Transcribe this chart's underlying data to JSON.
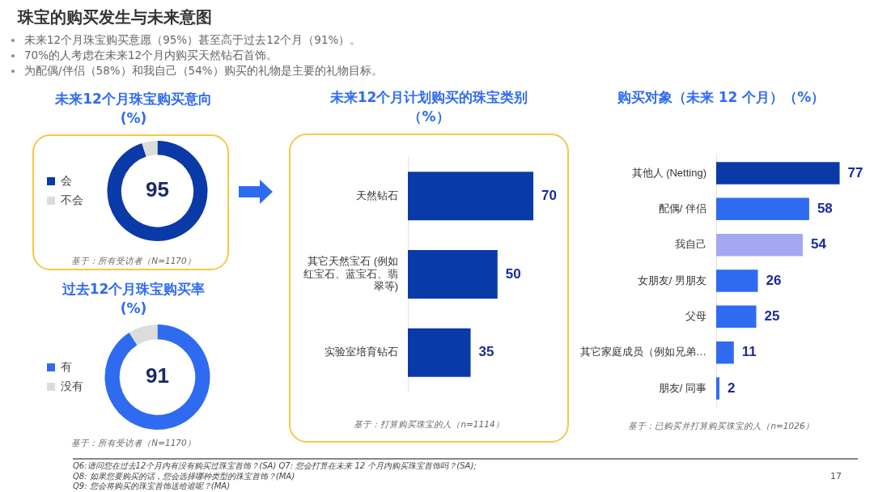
{
  "chart_data": [
    {
      "type": "other",
      "title": "珠宝的购买发生与未来意图",
      "annotations": [
        "未来12个月珠宝购买意愿（95%）甚至高于过去12个月（91%）。",
        "70%的人考虑在未来12个月内购买天然钻石首饰。",
        "为配偶/伴侣（58%）和我自己（54%）购买的礼物是主要的礼物目标。"
      ]
    },
    {
      "type": "donut",
      "title": "未来12个月珠宝购买意向",
      "subtitle": "(%)",
      "categories": [
        "会",
        "不会"
      ],
      "values": [
        95,
        5
      ],
      "colors": [
        "#0a3aa8",
        "#dcdcdc"
      ],
      "value_labels": [
        "95",
        null
      ],
      "legend": "left",
      "annotations": [
        "基于：所有受访者（N=1170）"
      ]
    },
    {
      "type": "donut",
      "title": "过去12个月珠宝购买率",
      "subtitle": "(%)",
      "categories": [
        "有",
        "没有"
      ],
      "values": [
        91,
        9
      ],
      "colors": [
        "#2f6bf0",
        "#dcdcdc"
      ],
      "value_labels": [
        "91",
        null
      ],
      "legend": "left",
      "annotations": [
        "基于：所有受访者（N=1170）"
      ]
    },
    {
      "type": "bar",
      "orientation": "horizontal",
      "title": "未来12个月计划购买的珠宝类别",
      "subtitle": "（%）",
      "categories": [
        "天然钻石",
        "其它天然宝石 (例如红宝石、蓝宝石、翡翠等)",
        "实验室培育钻石"
      ],
      "values": [
        70,
        50,
        35
      ],
      "colors": [
        "#0a3aa8",
        "#0a3aa8",
        "#0a3aa8"
      ],
      "data_labels": true,
      "annotations": [
        "基于：打算购买珠宝的人（n=1114）"
      ]
    },
    {
      "type": "bar",
      "orientation": "horizontal",
      "title": "购买对象（未来 12 个月）（%）",
      "categories": [
        "其他人 (Netting)",
        "配偶/ 伴侣",
        "我自己",
        "女朋友/ 男朋友",
        "父母",
        "其它家庭成员（例如兄弟…",
        "朋友/ 同事"
      ],
      "values": [
        77,
        58,
        54,
        26,
        25,
        11,
        2
      ],
      "colors": [
        "#0a3aa8",
        "#2f6bf0",
        "#a3a8f0",
        "#2f6bf0",
        "#2f6bf0",
        "#2f6bf0",
        "#2f6bf0"
      ],
      "data_labels": true,
      "annotations": [
        "基于：已购买并打算购买珠宝的人（n=1026）"
      ]
    },
    {
      "type": "other",
      "annotations": [
        "Q6:请问您在过去12个月内有没有购买过珠宝首饰？(SA) Q7: 您会打算在未来 12 个月内购买珠宝首饰吗？(SA);",
        "Q8: 如果您要购买的话，您会选择哪种类型的珠宝首饰？(MA)",
        "Q9: 您会将购买的珠宝首饰送给谁呢？(MA)",
        "17"
      ]
    }
  ]
}
